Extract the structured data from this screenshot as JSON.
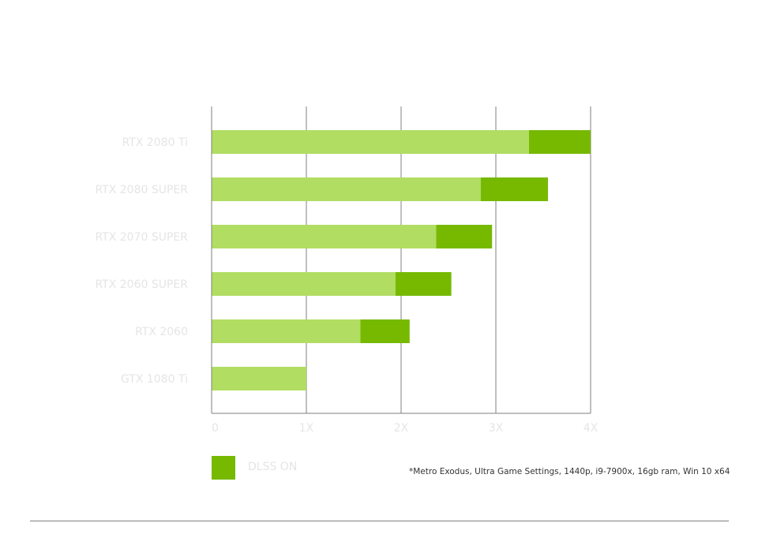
{
  "colors": {
    "base_bar": "#b1dd63",
    "dlss_bar": "#76b900",
    "gridline": "#7f7f7f",
    "label_text": "#e5e5e5",
    "footnote_text": "#333333"
  },
  "legend": {
    "dlss_label": "DLSS ON"
  },
  "footnote": "*Metro Exodus, Ultra Game Settings, 1440p, i9-7900x, 16gb ram, Win 10 x64",
  "chart_data": {
    "type": "bar",
    "orientation": "horizontal",
    "stacked": true,
    "title": "",
    "xlabel": "",
    "ylabel": "",
    "xlim": [
      0,
      4
    ],
    "x_ticks": [
      0,
      1,
      2,
      3,
      4
    ],
    "x_tick_labels": [
      "0",
      "1X",
      "2X",
      "3X",
      "4X"
    ],
    "grid": true,
    "legend_position": "bottom-left",
    "categories": [
      "RTX 2080 Ti",
      "RTX 2080 SUPER",
      "RTX 2070 SUPER",
      "RTX 2060 SUPER",
      "RTX 2060",
      "GTX 1080 Ti"
    ],
    "series": [
      {
        "values": [
          3.35,
          2.84,
          2.37,
          1.94,
          1.57,
          1.0
        ],
        "color": "#b1dd63"
      },
      {
        "name": "DLSS ON",
        "values": [
          0.65,
          0.71,
          0.59,
          0.59,
          0.52,
          0.0
        ],
        "color": "#76b900"
      }
    ]
  }
}
